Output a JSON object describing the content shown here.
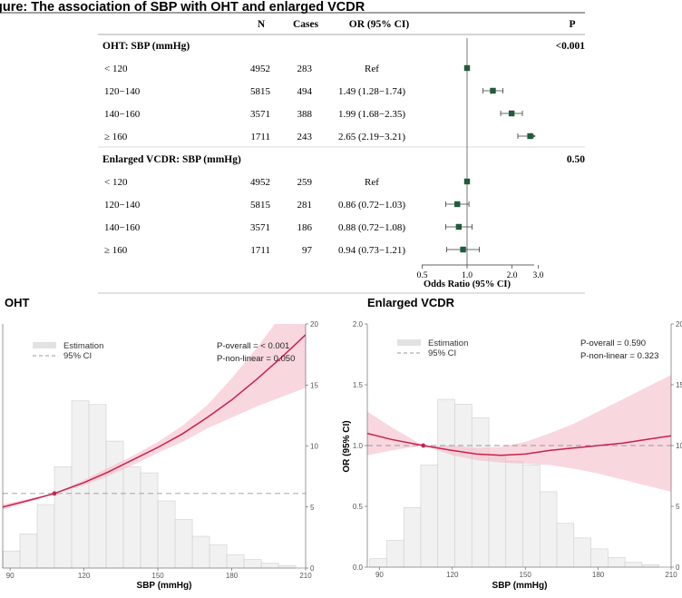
{
  "figure_title": "gure: The association of SBP with OHT and enlarged VCDR",
  "forest": {
    "headers": {
      "n": "N",
      "cases": "Cases",
      "or": "OR (95% CI)",
      "p": "P"
    },
    "xaxis_label": "Odds Ratio (95% CI)",
    "ticks": [
      "0.5",
      "1.0",
      "2.0",
      "3.0"
    ],
    "groups": [
      {
        "label": "OHT: SBP (mmHg)",
        "p": "<0.001"
      },
      {
        "label": "Enlarged VCDR: SBP (mmHg)",
        "p": "0.50"
      }
    ],
    "rows": [
      {
        "label": "< 120",
        "n": "4952",
        "cases": "283",
        "or_text": "Ref"
      },
      {
        "label": "120−140",
        "n": "5815",
        "cases": "494",
        "or_text": "1.49 (1.28−1.74)"
      },
      {
        "label": "140−160",
        "n": "3571",
        "cases": "388",
        "or_text": "1.99 (1.68−2.35)"
      },
      {
        "label": "≥ 160",
        "n": "1711",
        "cases": "243",
        "or_text": "2.65 (2.19−3.21)"
      },
      {
        "label": "< 120",
        "n": "4952",
        "cases": "259",
        "or_text": "Ref"
      },
      {
        "label": "120−140",
        "n": "5815",
        "cases": "281",
        "or_text": "0.86 (0.72−1.03)"
      },
      {
        "label": "140−160",
        "n": "3571",
        "cases": "186",
        "or_text": "0.88 (0.72−1.08)"
      },
      {
        "label": "≥ 160",
        "n": "1711",
        "cases": "97",
        "or_text": "0.94 (0.73−1.21)"
      }
    ]
  },
  "oht_panel": {
    "title": "OHT",
    "legend": {
      "estimation": "Estimation",
      "ci": "95% CI"
    },
    "p_overall": "P-overall = < 0.001",
    "p_nonlinear": "P-non-linear = 0.050",
    "xlabel": "SBP (mmHg)",
    "xticks": [
      "90",
      "120",
      "150",
      "180",
      "210"
    ],
    "right_ticks": [
      "0",
      "5",
      "10",
      "15",
      "20"
    ]
  },
  "vcdr_panel": {
    "title": "Enlarged VCDR",
    "legend": {
      "estimation": "Estimation",
      "ci": "95% CI"
    },
    "p_overall": "P-overall = 0.590",
    "p_nonlinear": "P-non-linear = 0.323",
    "xlabel": "SBP (mmHg)",
    "ylabel": "OR (95% CI)",
    "xticks": [
      "90",
      "120",
      "150",
      "180",
      "210"
    ],
    "yticks": [
      "0.0",
      "0.5",
      "1.0",
      "1.5",
      "2.0"
    ],
    "right_ticks": [
      "0",
      "5",
      "10",
      "15",
      "20"
    ]
  },
  "chart_data": [
    {
      "type": "forest",
      "xscale": "log",
      "xlim": [
        0.5,
        3.0
      ],
      "reference_line": 1.0,
      "rows": [
        {
          "group": "OHT",
          "category": "< 120",
          "n": 4952,
          "cases": 283,
          "or": 1.0,
          "lo": 1.0,
          "hi": 1.0
        },
        {
          "group": "OHT",
          "category": "120−140",
          "n": 5815,
          "cases": 494,
          "or": 1.49,
          "lo": 1.28,
          "hi": 1.74
        },
        {
          "group": "OHT",
          "category": "140−160",
          "n": 3571,
          "cases": 388,
          "or": 1.99,
          "lo": 1.68,
          "hi": 2.35
        },
        {
          "group": "OHT",
          "category": "≥ 160",
          "n": 1711,
          "cases": 243,
          "or": 2.65,
          "lo": 2.19,
          "hi": 3.21
        },
        {
          "group": "Enlarged VCDR",
          "category": "< 120",
          "n": 4952,
          "cases": 259,
          "or": 1.0,
          "lo": 1.0,
          "hi": 1.0
        },
        {
          "group": "Enlarged VCDR",
          "category": "120−140",
          "n": 5815,
          "cases": 281,
          "or": 0.86,
          "lo": 0.72,
          "hi": 1.03
        },
        {
          "group": "Enlarged VCDR",
          "category": "140−160",
          "n": 3571,
          "cases": 186,
          "or": 0.88,
          "lo": 0.72,
          "hi": 1.08
        },
        {
          "group": "Enlarged VCDR",
          "category": "≥ 160",
          "n": 1711,
          "cases": 97,
          "or": 0.94,
          "lo": 0.73,
          "hi": 1.21
        }
      ]
    },
    {
      "type": "line",
      "panel": "OHT",
      "xlim": [
        87,
        210
      ],
      "ylim_left": [
        0.45,
        2.25
      ],
      "ylim_right": [
        0,
        20
      ],
      "reference_line_y": 1.0,
      "estimate_x": [
        87,
        100,
        108,
        120,
        130,
        140,
        150,
        160,
        170,
        180,
        190,
        200,
        210
      ],
      "estimate_y": [
        0.9,
        0.96,
        1.0,
        1.08,
        1.16,
        1.25,
        1.34,
        1.44,
        1.56,
        1.69,
        1.84,
        2.0,
        2.17
      ],
      "ci_upper": [
        0.92,
        0.97,
        1.0,
        1.1,
        1.19,
        1.28,
        1.38,
        1.5,
        1.65,
        1.85,
        2.07,
        2.31,
        2.55
      ],
      "ci_lower": [
        0.88,
        0.95,
        1.0,
        1.06,
        1.13,
        1.21,
        1.3,
        1.38,
        1.48,
        1.56,
        1.64,
        1.71,
        1.78
      ],
      "reference_point": [
        108,
        1.0
      ],
      "histogram": {
        "bin_starts": [
          87,
          94,
          101,
          108,
          115,
          122,
          129,
          136,
          143,
          150,
          157,
          164,
          171,
          178,
          185,
          192,
          199
        ],
        "percent": [
          1.4,
          2.8,
          5.2,
          8.3,
          13.7,
          13.4,
          10.4,
          8.3,
          7.8,
          5.5,
          4.0,
          2.6,
          1.9,
          1.1,
          0.7,
          0.4,
          0.2
        ]
      }
    },
    {
      "type": "line",
      "panel": "Enlarged VCDR",
      "xlim": [
        85,
        210
      ],
      "ylim_left": [
        0.0,
        2.0
      ],
      "ylim_right": [
        0,
        20
      ],
      "reference_line_y": 1.0,
      "estimate_x": [
        85,
        95,
        108,
        120,
        130,
        140,
        150,
        160,
        170,
        180,
        190,
        200,
        210
      ],
      "estimate_y": [
        1.1,
        1.05,
        1.0,
        0.96,
        0.93,
        0.92,
        0.93,
        0.96,
        0.98,
        1.0,
        1.02,
        1.05,
        1.08
      ],
      "ci_upper": [
        1.28,
        1.15,
        1.0,
        1.0,
        0.98,
        0.99,
        1.03,
        1.1,
        1.18,
        1.28,
        1.38,
        1.48,
        1.58
      ],
      "ci_lower": [
        0.92,
        0.96,
        1.0,
        0.92,
        0.88,
        0.86,
        0.85,
        0.84,
        0.81,
        0.77,
        0.72,
        0.67,
        0.62
      ],
      "reference_point": [
        108,
        1.0
      ],
      "histogram": {
        "bin_starts": [
          86,
          93,
          100,
          107,
          114,
          121,
          128,
          135,
          142,
          149,
          156,
          163,
          170,
          177,
          184,
          191,
          198
        ],
        "percent": [
          0.7,
          2.2,
          4.9,
          8.4,
          13.8,
          13.4,
          12.3,
          9.2,
          8.7,
          8.4,
          6.2,
          3.6,
          2.4,
          1.5,
          0.8,
          0.4,
          0.2
        ]
      }
    }
  ]
}
